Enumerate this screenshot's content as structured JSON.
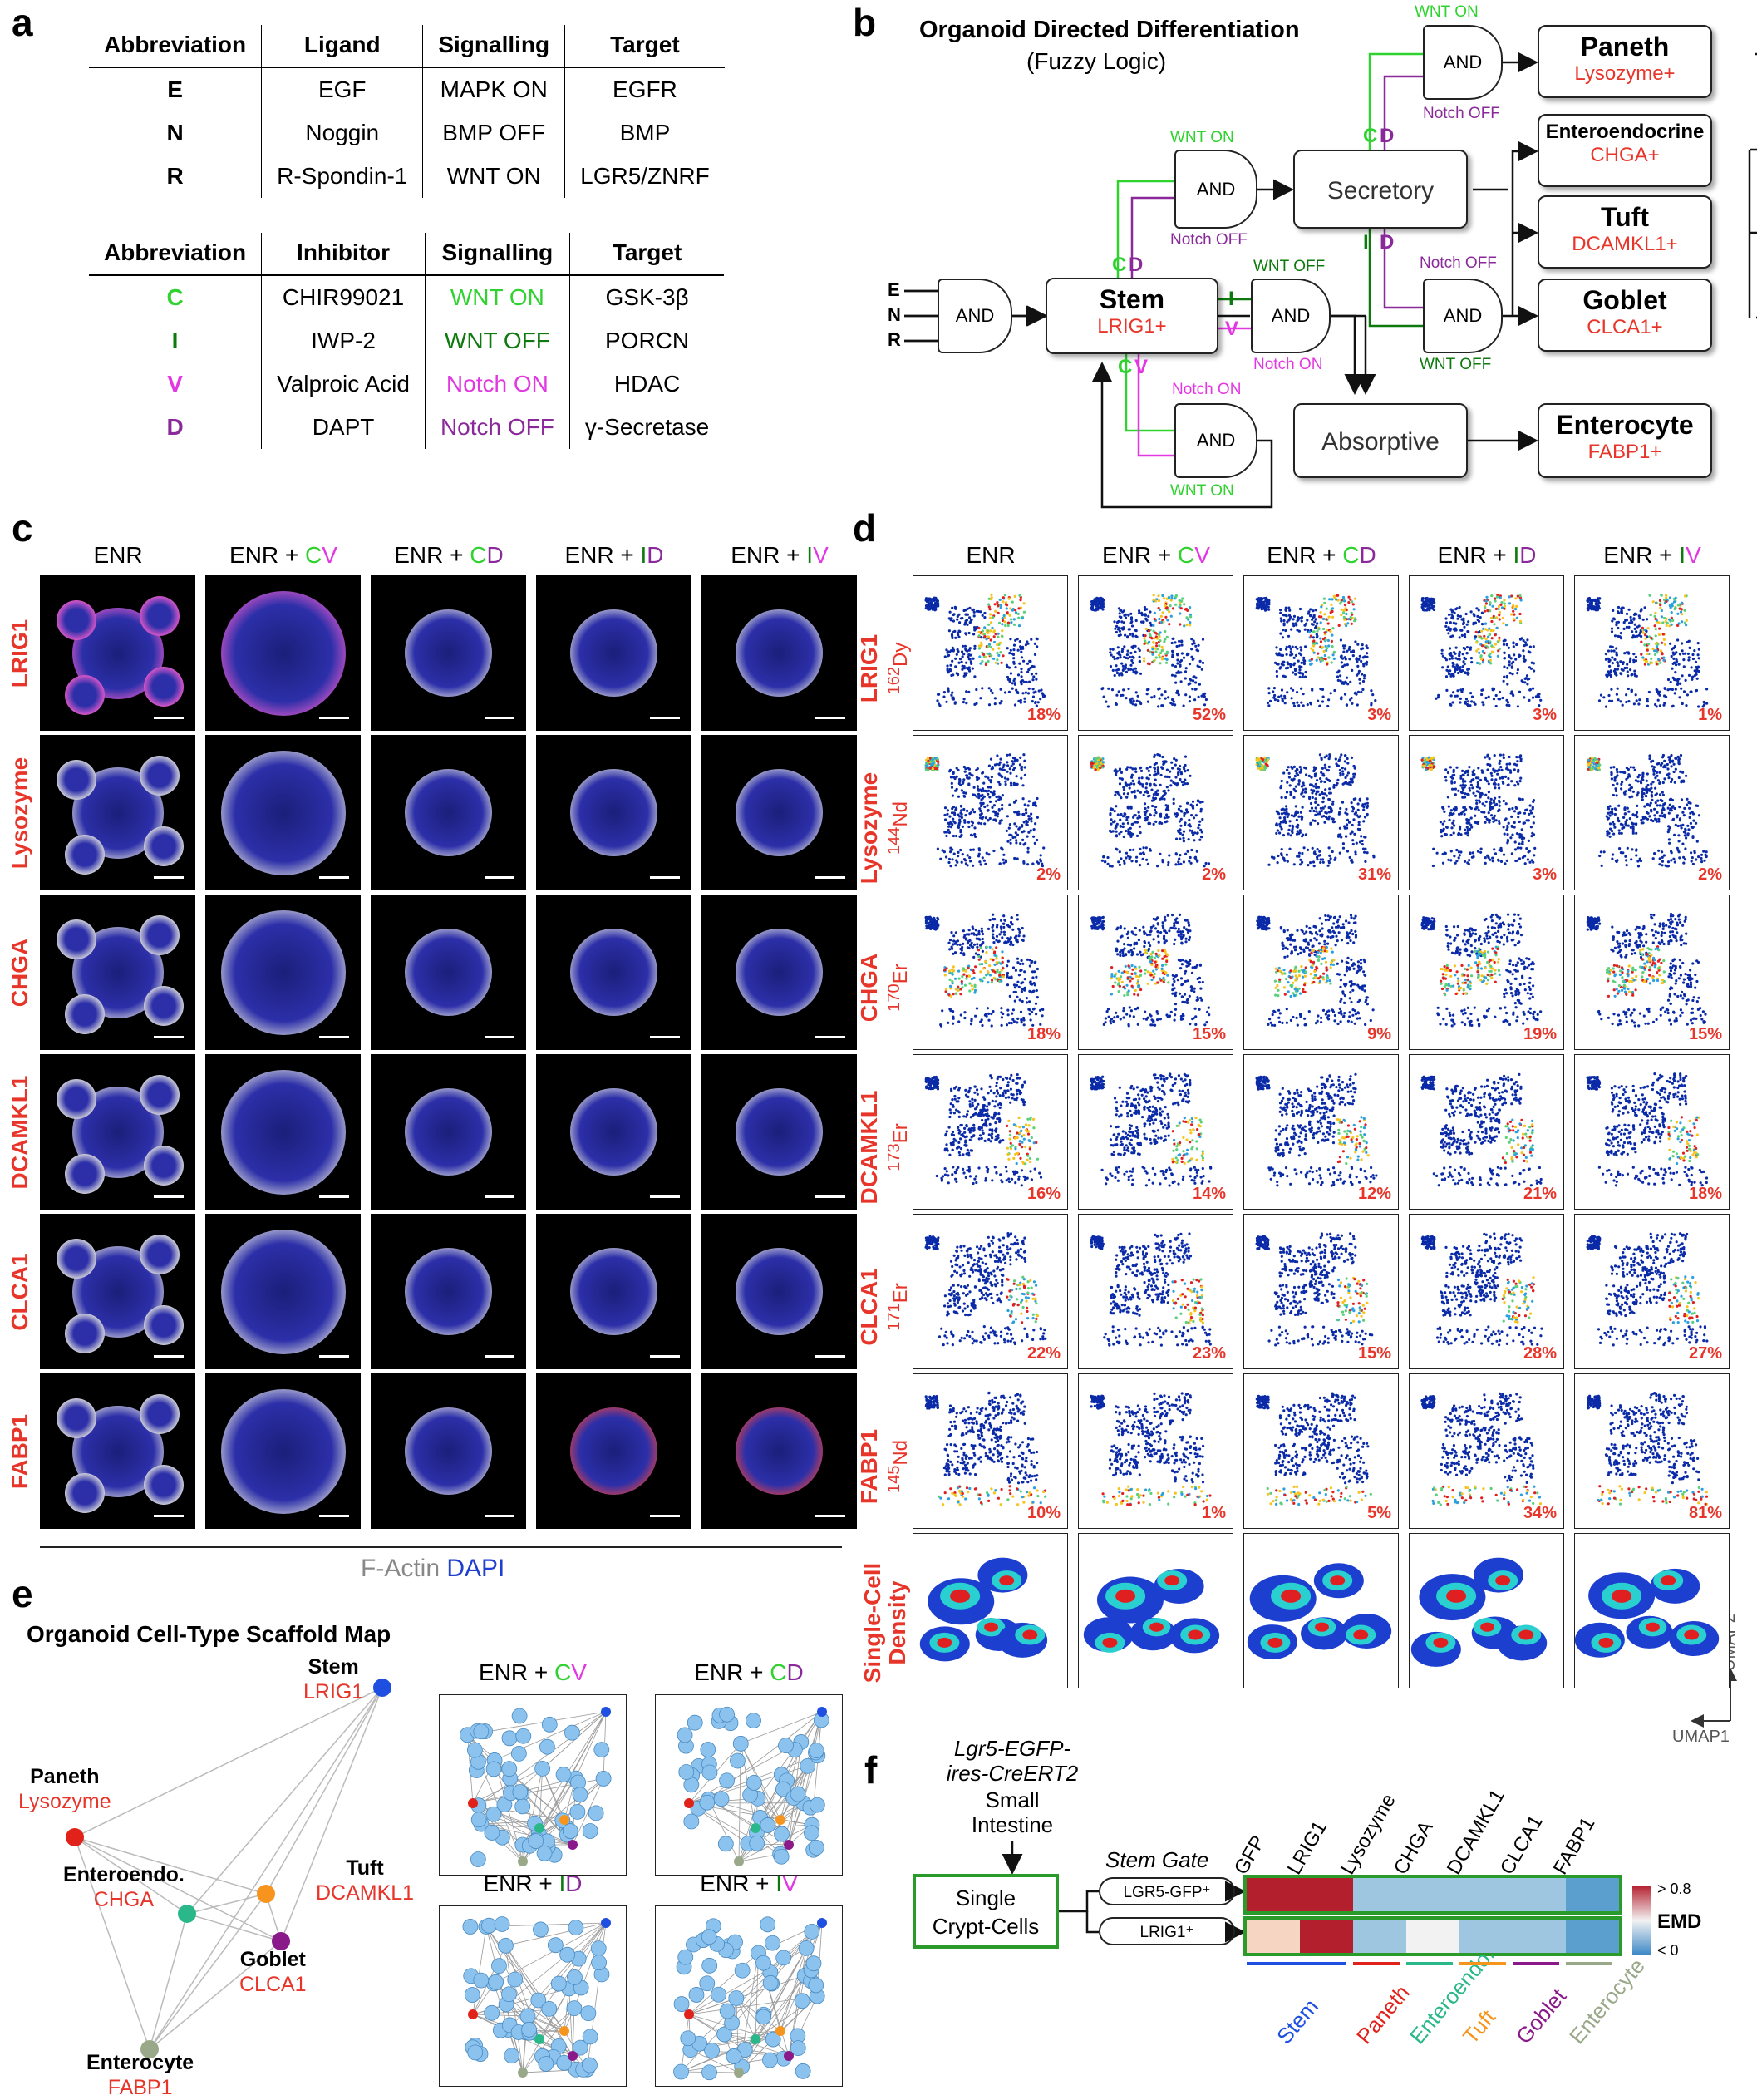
{
  "panels": {
    "a": "a",
    "b": "b",
    "c": "c",
    "d": "d",
    "e": "e",
    "f": "f"
  },
  "table1": {
    "headers": [
      "Abbreviation",
      "Ligand",
      "Signalling",
      "Target"
    ],
    "rows": [
      [
        "E",
        "EGF",
        "MAPK ON",
        "EGFR"
      ],
      [
        "N",
        "Noggin",
        "BMP OFF",
        "BMP"
      ],
      [
        "R",
        "R-Spondin-1",
        "WNT ON",
        "LGR5/ZNRF"
      ]
    ]
  },
  "table2": {
    "headers": [
      "Abbreviation",
      "Inhibitor",
      "Signalling",
      "Target"
    ],
    "rows": [
      [
        "C",
        "CHIR99021",
        "WNT ON",
        "GSK-3β"
      ],
      [
        "I",
        "IWP-2",
        "WNT OFF",
        "PORCN"
      ],
      [
        "V",
        "Valproic Acid",
        "Notch ON",
        "HDAC"
      ],
      [
        "D",
        "DAPT",
        "Notch OFF",
        "γ-Secretase"
      ]
    ],
    "colors": [
      "#2fd22f",
      "#0e7a0e",
      "#e238e2",
      "#8a2a9a"
    ]
  },
  "diagram": {
    "title": "Organoid Directed Differentiation",
    "subtitle": "(Fuzzy Logic)",
    "and": "AND",
    "inputs": [
      "E",
      "N",
      "R"
    ],
    "stem": {
      "name": "Stem",
      "marker": "LRIG1+"
    },
    "secretory": "Secretory",
    "absorptive": "Absorptive",
    "paneth": {
      "name": "Paneth",
      "marker": "Lysozyme+"
    },
    "entero": {
      "name": "Enteroendocrine",
      "marker": "CHGA+"
    },
    "tuft": {
      "name": "Tuft",
      "marker": "DCAMKL1+"
    },
    "goblet": {
      "name": "Goblet",
      "marker": "CLCA1+"
    },
    "enterocyte": {
      "name": "Enterocyte",
      "marker": "FABP1+"
    },
    "wnt_on": "WNT ON",
    "wnt_off": "WNT OFF",
    "notch_on": "Notch ON",
    "notch_off": "Notch OFF",
    "C": "C",
    "D": "D",
    "I": "I",
    "V": "V"
  },
  "micro": {
    "conditions": [
      {
        "base": "ENR",
        "a": "",
        "b": ""
      },
      {
        "base": "ENR + ",
        "a": "C",
        "b": "V"
      },
      {
        "base": "ENR + ",
        "a": "C",
        "b": "D"
      },
      {
        "base": "ENR + ",
        "a": "I",
        "b": "D"
      },
      {
        "base": "ENR + ",
        "a": "I",
        "b": "V"
      }
    ],
    "rows": [
      "LRIG1",
      "Lysozyme",
      "CHGA",
      "DCAMKL1",
      "CLCA1",
      "FABP1"
    ],
    "legend_factin": "F-Actin",
    "legend_dapi": "DAPI"
  },
  "umap": {
    "rows": [
      {
        "name": "LRIG1",
        "iso": "162",
        "el": "Dy"
      },
      {
        "name": "Lysozyme",
        "iso": "144",
        "el": "Nd"
      },
      {
        "name": "CHGA",
        "iso": "170",
        "el": "Er"
      },
      {
        "name": "DCAMKL1",
        "iso": "173",
        "el": "Er"
      },
      {
        "name": "CLCA1",
        "iso": "171",
        "el": "Er"
      },
      {
        "name": "FABP1",
        "iso": "145",
        "el": "Nd"
      }
    ],
    "density_label1": "Single-Cell",
    "density_label2": "Density",
    "percentages": [
      [
        "18%",
        "52%",
        "3%",
        "3%",
        "1%"
      ],
      [
        "2%",
        "2%",
        "31%",
        "3%",
        "2%"
      ],
      [
        "18%",
        "15%",
        "9%",
        "19%",
        "15%"
      ],
      [
        "16%",
        "14%",
        "12%",
        "21%",
        "18%"
      ],
      [
        "22%",
        "23%",
        "15%",
        "28%",
        "27%"
      ],
      [
        "10%",
        "1%",
        "5%",
        "34%",
        "81%"
      ]
    ],
    "axis_x": "UMAP1",
    "axis_y": "UMAP2"
  },
  "scaffold": {
    "title": "Organoid Cell-Type Scaffold Map",
    "nodes": [
      {
        "name": "Stem",
        "marker": "LRIG1",
        "color": "#1f4fe0"
      },
      {
        "name": "Paneth",
        "marker": "Lysozyme",
        "color": "#e0221a"
      },
      {
        "name": "Tuft",
        "marker": "DCAMKL1",
        "color": "#f7941d"
      },
      {
        "name": "Enteroendo.",
        "marker": "CHGA",
        "color": "#2ab88a"
      },
      {
        "name": "Goblet",
        "marker": "CLCA1",
        "color": "#8a1a8a"
      },
      {
        "name": "Enterocyte",
        "marker": "FABP1",
        "color": "#9aa88a"
      }
    ],
    "insets": [
      {
        "base": "ENR + ",
        "a": "C",
        "b": "V"
      },
      {
        "base": "ENR + ",
        "a": "C",
        "b": "D"
      },
      {
        "base": "ENR + ",
        "a": "I",
        "b": "D"
      },
      {
        "base": "ENR + ",
        "a": "I",
        "b": "V"
      }
    ]
  },
  "panel_f": {
    "mouse": [
      "Lgr5-EGFP-",
      "ires-CreERT2"
    ],
    "tissue": [
      "Small",
      "Intestine"
    ],
    "source": [
      "Single",
      "Crypt-Cells"
    ],
    "gate_title": "Stem Gate",
    "gates": [
      "LGR5-GFP⁺",
      "LRIG1⁺"
    ],
    "markers": [
      "GFP",
      "LRIG1",
      "Lysozyme",
      "CHGA",
      "DCAMKL1",
      "CLCA1",
      "FABP1"
    ],
    "emd_high": "> 0.8",
    "emd_low": "< 0",
    "emd_label": "EMD",
    "groups": [
      {
        "name": "Stem",
        "color": "#1f4fe0"
      },
      {
        "name": "Paneth",
        "color": "#e0221a"
      },
      {
        "name": "Enteroendo.",
        "color": "#2ab88a"
      },
      {
        "name": "Tuft",
        "color": "#f7941d"
      },
      {
        "name": "Goblet",
        "color": "#8a1a8a"
      },
      {
        "name": "Enterocyte",
        "color": "#9aa88a"
      }
    ],
    "heat_row1": [
      "#b41f2e",
      "#b41f2e",
      "#9ec6e0",
      "#9ec6e0",
      "#9ec6e0",
      "#9ec6e0",
      "#5b9fcf"
    ],
    "heat_row2": [
      "#f6d6c3",
      "#b41f2e",
      "#9ec6e0",
      "#f2f2f2",
      "#9ec6e0",
      "#9ec6e0",
      "#5b9fcf"
    ]
  }
}
